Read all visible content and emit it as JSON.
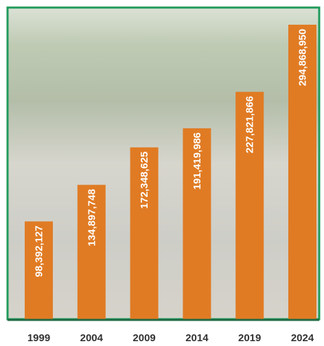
{
  "chart_data": {
    "type": "bar",
    "categories": [
      "1999",
      "2004",
      "2009",
      "2014",
      "2019",
      "2024"
    ],
    "values": [
      98392127,
      134897748,
      172348625,
      191419986,
      227821866,
      294868950
    ],
    "value_labels": [
      "98,392,127",
      "134,897,748",
      "172,348,625",
      "191,419,986",
      "227,821,866",
      "294,868,950"
    ],
    "color": "#e07b24"
  }
}
